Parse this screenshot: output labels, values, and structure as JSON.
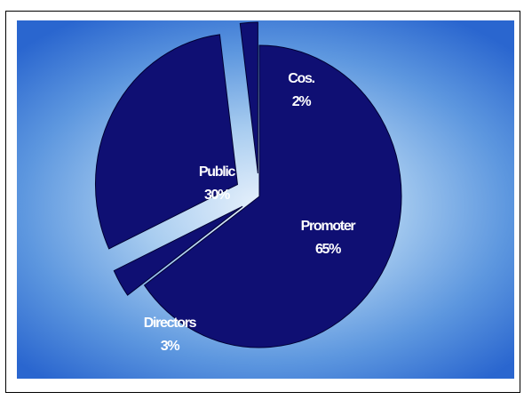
{
  "chart_data": {
    "type": "pie",
    "exploded": true,
    "slices": [
      {
        "label": "Promoter",
        "percent_text": "65%",
        "value": 65
      },
      {
        "label": "Directors",
        "percent_text": "3%",
        "value": 3
      },
      {
        "label": "Public",
        "percent_text": "30%",
        "value": 30
      },
      {
        "label": "Cos.",
        "percent_text": "2%",
        "value": 2
      }
    ],
    "colors": {
      "slice_fill": "#0f0f73",
      "slice_outline": "#000033",
      "label_color": "#ffffff",
      "background_center": "#e9f2fc",
      "background_edge": "#2a66cf"
    }
  }
}
